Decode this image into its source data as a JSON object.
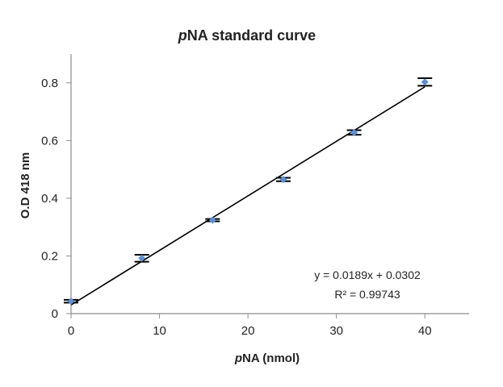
{
  "chart_data": {
    "type": "scatter",
    "title_italic": "p",
    "title_rest": "NA standard curve",
    "xlabel_italic": "p",
    "xlabel_rest": "NA (nmol)",
    "ylabel": "O.D 418 nm",
    "xlim": [
      0,
      45
    ],
    "ylim": [
      0,
      0.9
    ],
    "xticks": [
      0,
      10,
      20,
      30,
      40
    ],
    "xtick_labels": [
      "0",
      "10",
      "20",
      "30",
      "40"
    ],
    "yticks": [
      0,
      0.2,
      0.4,
      0.6,
      0.8
    ],
    "ytick_labels": [
      "0",
      "0.2",
      "0.4",
      "0.6",
      "0.8"
    ],
    "grid": false,
    "legend": "none",
    "series": [
      {
        "x": [
          0,
          8,
          16,
          24,
          32,
          40
        ],
        "y": [
          0.043,
          0.192,
          0.324,
          0.465,
          0.628,
          0.803
        ],
        "yerr": [
          0.005,
          0.012,
          0.004,
          0.006,
          0.008,
          0.013
        ],
        "color": "#5b8fd6"
      }
    ],
    "trendline": {
      "slope": 0.0189,
      "intercept": 0.0302,
      "equation_text": "y = 0.0189x + 0.0302",
      "r2_text": "R² = 0.99743",
      "color": "#000000"
    }
  }
}
